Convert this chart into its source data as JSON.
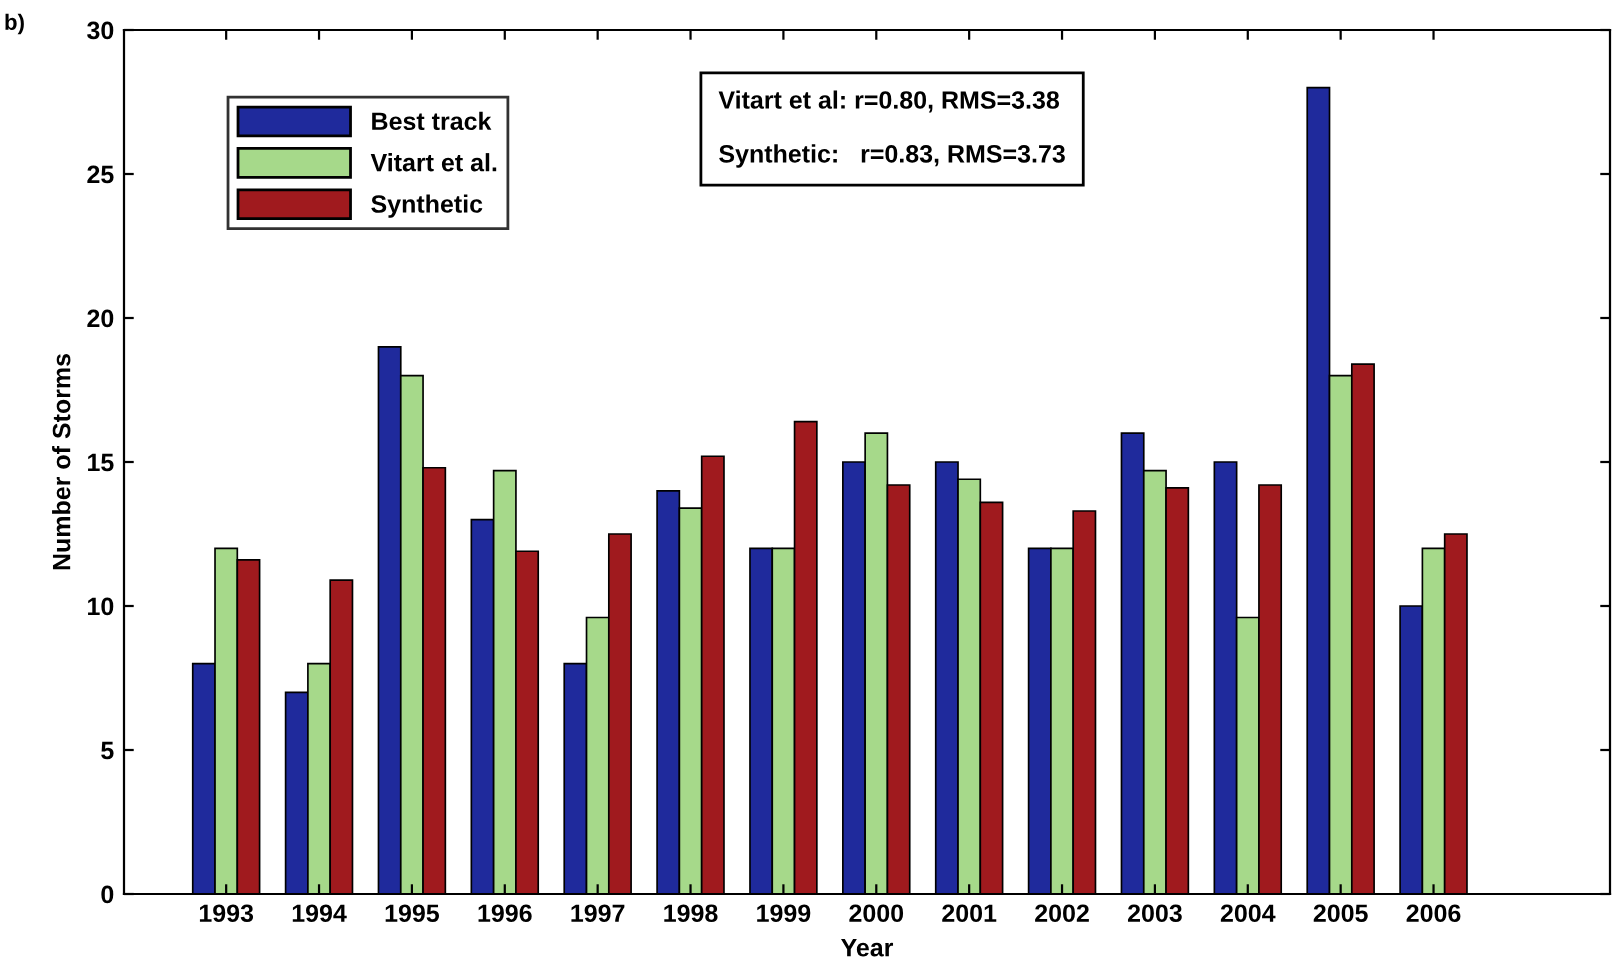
{
  "chart_data": {
    "type": "bar",
    "xlabel": "Year",
    "ylabel": "Number of Storms",
    "categories": [
      "1993",
      "1994",
      "1995",
      "1996",
      "1997",
      "1998",
      "1999",
      "2000",
      "2001",
      "2002",
      "2003",
      "2004",
      "2005",
      "2006"
    ],
    "series": [
      {
        "name": "Best track",
        "color": "#1f2a9c",
        "values": [
          8,
          7,
          19,
          13,
          8,
          14,
          12,
          15,
          15,
          12,
          16,
          15,
          28,
          10
        ]
      },
      {
        "name": "Vitart et al.",
        "color": "#a6d98a",
        "values": [
          12,
          8,
          18,
          14.7,
          9.6,
          13.4,
          12,
          16,
          14.4,
          12,
          14.7,
          9.6,
          18,
          12
        ]
      },
      {
        "name": "Synthetic",
        "color": "#a01a1e",
        "values": [
          11.6,
          10.9,
          14.8,
          11.9,
          12.5,
          15.2,
          16.4,
          14.2,
          13.6,
          13.3,
          14.1,
          14.2,
          18.4,
          12.5
        ]
      }
    ],
    "ylim": [
      0,
      30
    ],
    "yticks": [
      0,
      5,
      10,
      15,
      20,
      25,
      30
    ],
    "grid": false,
    "legend": "top left",
    "annotations": [
      "b)",
      "Vitart et al: r=0.80, RMS=3.38\n\nSynthetic:   r=0.83, RMS=3.73"
    ]
  }
}
